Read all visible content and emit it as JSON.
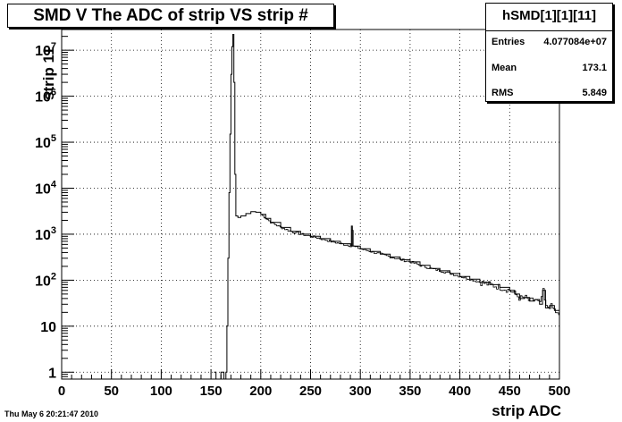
{
  "chart_data": {
    "type": "histogram",
    "title": "SMD V The ADC of strip VS strip #",
    "xlabel": "strip ADC",
    "ylabel": "strip 11",
    "xlim": [
      0,
      500
    ],
    "ylim_log10": [
      -0.15,
      7.45
    ],
    "y_scale": "log",
    "grid": true,
    "x_tick_labels": [
      "0",
      "50",
      "100",
      "150",
      "200",
      "250",
      "300",
      "350",
      "400",
      "450",
      "500"
    ],
    "x_ticks": [
      0,
      50,
      100,
      150,
      200,
      250,
      300,
      350,
      400,
      450,
      500
    ],
    "y_ticks": [
      {
        "value": 1,
        "base": "1",
        "exp": ""
      },
      {
        "value": 10,
        "base": "10",
        "exp": ""
      },
      {
        "value": 100,
        "base": "10",
        "exp": "2"
      },
      {
        "value": 1000,
        "base": "10",
        "exp": "3"
      },
      {
        "value": 10000,
        "base": "10",
        "exp": "4"
      },
      {
        "value": 100000,
        "base": "10",
        "exp": "5"
      },
      {
        "value": 1000000,
        "base": "10",
        "exp": "6"
      },
      {
        "value": 10000000,
        "base": "10",
        "exp": "7"
      }
    ],
    "series": [
      {
        "x": [
          153,
          155,
          160,
          163,
          165,
          166,
          167,
          168,
          169,
          170,
          171,
          172,
          173,
          174,
          175,
          177,
          180,
          185,
          190,
          195,
          200,
          205,
          210,
          220,
          230,
          240,
          250,
          260,
          270,
          280,
          290,
          291,
          292,
          300,
          310,
          320,
          330,
          340,
          350,
          360,
          370,
          380,
          390,
          400,
          410,
          420,
          430,
          440,
          450,
          455,
          460,
          465,
          470,
          475,
          480,
          483,
          486,
          490,
          495,
          500
        ],
        "y": [
          1,
          0.4,
          1,
          0.4,
          1,
          10,
          300,
          8000,
          150000,
          3000000,
          12000000,
          22000000,
          2000000,
          20000,
          2500,
          2300,
          2500,
          2800,
          3100,
          3000,
          2700,
          2200,
          1800,
          1400,
          1150,
          1000,
          900,
          800,
          700,
          620,
          560,
          1500,
          550,
          480,
          420,
          370,
          320,
          280,
          250,
          210,
          180,
          160,
          140,
          120,
          105,
          90,
          80,
          70,
          60,
          50,
          40,
          42,
          35,
          38,
          30,
          60,
          25,
          28,
          22,
          15
        ]
      }
    ],
    "stats": {
      "title": "hSMD[1][1][11]",
      "entries_label": "Entries",
      "entries_value": "4.077084e+07",
      "mean_label": "Mean",
      "mean_value": "173.1",
      "rms_label": "RMS",
      "rms_value": "5.849"
    }
  },
  "footer": {
    "timestamp": "Thu May  6 20:21:47 2010"
  },
  "colors": {
    "line": "#000000",
    "grid": "#000000",
    "background": "#ffffff"
  }
}
